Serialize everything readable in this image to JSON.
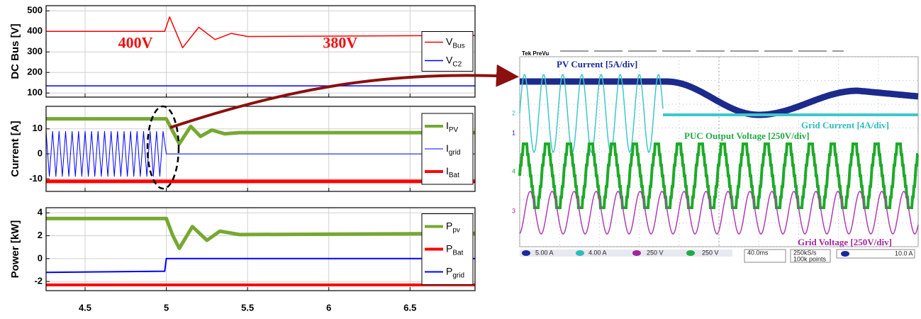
{
  "chart_data": [
    {
      "type": "line",
      "ylabel": "DC Bus [V]",
      "xlim": [
        4.26,
        6.9
      ],
      "ylim": [
        80,
        525
      ],
      "yticks": [
        100,
        200,
        300,
        400,
        500
      ],
      "grid": true,
      "legend": "center right",
      "series": [
        {
          "name": "V",
          "name_sub": "Bus",
          "color": "#ff0000",
          "width": 1.5,
          "x": [
            4.26,
            4.99,
            5.02,
            5.1,
            5.2,
            5.3,
            5.4,
            5.5,
            6.9
          ],
          "values": [
            400,
            400,
            470,
            320,
            420,
            360,
            390,
            375,
            380
          ]
        },
        {
          "name": "V",
          "name_sub": "C2",
          "color": "#0000ff",
          "width": 1.5,
          "x": [
            4.26,
            6.9
          ],
          "values": [
            135,
            135
          ]
        }
      ],
      "annotations": [
        {
          "text": "400V",
          "x": 4.81,
          "y": 338
        },
        {
          "text": "380V",
          "x": 6.07,
          "y": 338
        }
      ]
    },
    {
      "type": "line",
      "ylabel": "Current [A]",
      "xlim": [
        4.26,
        6.9
      ],
      "ylim": [
        -15,
        19
      ],
      "yticks": [
        -10,
        0,
        10
      ],
      "grid": true,
      "legend": "center right",
      "series": [
        {
          "name": "I",
          "name_sub": "PV",
          "color": "#77a832",
          "width": 5,
          "x": [
            4.26,
            5.0,
            5.04,
            5.08,
            5.15,
            5.21,
            5.28,
            5.36,
            5.45,
            6.9
          ],
          "values": [
            14,
            14,
            9,
            4,
            11,
            7,
            9.5,
            8,
            8.5,
            8.5
          ]
        },
        {
          "name": "I",
          "name_sub": "grid",
          "color": "#0000ff",
          "width": 1,
          "x": [
            4.26,
            4.28,
            4.3,
            4.32,
            4.34,
            4.36,
            4.38,
            4.4,
            4.42,
            4.44,
            4.46,
            4.48,
            4.5,
            4.52,
            4.54,
            4.56,
            4.58,
            4.6,
            4.62,
            4.64,
            4.66,
            4.68,
            4.7,
            4.72,
            4.74,
            4.76,
            4.78,
            4.8,
            4.82,
            4.84,
            4.86,
            4.88,
            4.9,
            4.92,
            4.94,
            4.96,
            4.98,
            5.0,
            6.9
          ],
          "values": [
            9,
            -9,
            9,
            -9,
            9,
            -9,
            9,
            -9,
            9,
            -9,
            9,
            -9,
            9,
            -9,
            9,
            -9,
            9,
            -9,
            9,
            -9,
            9,
            -9,
            9,
            -9,
            9,
            -9,
            9,
            -9,
            9,
            -9,
            9,
            -9,
            9,
            -9,
            9,
            -9,
            9,
            0,
            0
          ]
        },
        {
          "name": "I",
          "name_sub": "Bat",
          "color": "#ff0000",
          "width": 5,
          "x": [
            4.26,
            6.9
          ],
          "values": [
            -11,
            -11
          ]
        }
      ]
    },
    {
      "type": "line",
      "ylabel": "Power [kW]",
      "xlim": [
        4.26,
        6.9
      ],
      "xticks": [
        4.5,
        5,
        5.5,
        6,
        6.5
      ],
      "ylim": [
        -2.8,
        4.45
      ],
      "yticks": [
        -2,
        0,
        2,
        4
      ],
      "grid": true,
      "legend": "center right",
      "series": [
        {
          "name": "P",
          "name_sub": "pv",
          "color": "#77a832",
          "width": 5,
          "x": [
            4.26,
            5.0,
            5.04,
            5.08,
            5.16,
            5.25,
            5.33,
            5.45,
            6.9
          ],
          "values": [
            3.5,
            3.5,
            2,
            0.9,
            2.8,
            1.6,
            2.4,
            2.1,
            2.2
          ]
        },
        {
          "name": "P",
          "name_sub": "Bat",
          "color": "#ff0000",
          "width": 4,
          "x": [
            4.26,
            6.9
          ],
          "values": [
            -2.3,
            -2.3
          ]
        },
        {
          "name": "P",
          "name_sub": "grid",
          "color": "#0000ff",
          "width": 2,
          "x": [
            4.26,
            4.99,
            5.0,
            6.9
          ],
          "values": [
            -1.2,
            -1.1,
            0,
            0
          ]
        }
      ]
    }
  ],
  "scope": {
    "header": "Tek PreVu",
    "traces": [
      "PV Current [5A/div]",
      "Grid Current [4A/div]",
      "PUC Output Voltage [250V/div]",
      "Grid Voltage [250V/div]"
    ],
    "markers": [
      "1",
      "2",
      "3",
      "4"
    ],
    "status": [
      "5.00 A",
      "4.00 A",
      "250 V",
      "250 V",
      "40.0ms",
      "250kS/s",
      "100k points",
      "10.0 A"
    ]
  }
}
